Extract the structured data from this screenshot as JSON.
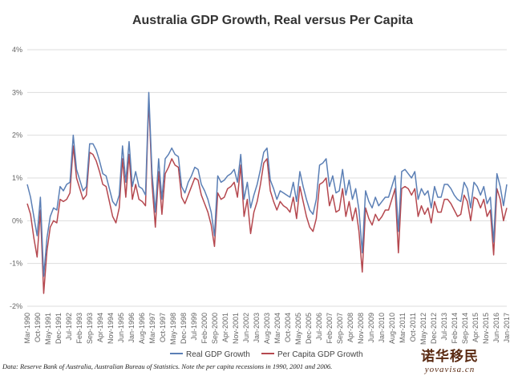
{
  "chart_data": {
    "type": "line",
    "title": "Australia GDP Growth, Real versus Per Capita",
    "ylim": [
      -2,
      4
    ],
    "yticks": [
      -2,
      -1,
      0,
      1,
      2,
      3,
      4
    ],
    "ytick_labels": [
      "-2%",
      "-1%",
      "0%",
      "1%",
      "2%",
      "3%",
      "4%"
    ],
    "x_start": "Mar-1990",
    "x_labels": [
      "Mar-1990",
      "Oct-1990",
      "May-1991",
      "Dec-1991",
      "Jul-1992",
      "Feb-1993",
      "Sep-1993",
      "Apr-1994",
      "Nov-1994",
      "Jun-1995",
      "Jan-1996",
      "Aug-1996",
      "Mar-1997",
      "Oct-1997",
      "May-1998",
      "Dec-1998",
      "Jul-1999",
      "Feb-2000",
      "Sep-2000",
      "Apr-2001",
      "Nov-2001",
      "Jun-2002",
      "Jan-2003",
      "Aug-2003",
      "Mar-2004",
      "Oct-2004",
      "May-2005",
      "Dec-2005",
      "Jul-2006",
      "Feb-2007",
      "Sep-2007",
      "Apr-2008",
      "Nov-2008",
      "Jun-2009",
      "Jan-2010",
      "Aug-2010",
      "Mar-2011",
      "Oct-2011",
      "May-2012",
      "Dec-2012",
      "Jul-2013",
      "Feb-2014",
      "Sep-2014",
      "Apr-2015",
      "Nov-2015",
      "Jun-2016",
      "Jan-2017"
    ],
    "legend_position": "bottom",
    "series": [
      {
        "name": "Real GDP Growth",
        "color": "#5b7fb5",
        "values": [
          0.85,
          0.55,
          0.1,
          -0.35,
          0.55,
          -1.3,
          -0.4,
          0.1,
          0.3,
          0.25,
          0.8,
          0.7,
          0.85,
          0.9,
          2.0,
          1.2,
          0.95,
          0.7,
          0.8,
          1.8,
          1.8,
          1.65,
          1.4,
          1.1,
          1.05,
          0.75,
          0.45,
          0.35,
          0.6,
          1.75,
          0.9,
          1.85,
          0.8,
          1.15,
          0.8,
          0.75,
          0.6,
          3.0,
          1.1,
          0.2,
          1.45,
          0.5,
          1.45,
          1.55,
          1.7,
          1.55,
          1.5,
          0.8,
          0.65,
          0.9,
          1.05,
          1.25,
          1.2,
          0.85,
          0.7,
          0.5,
          0.2,
          -0.35,
          1.05,
          0.9,
          0.95,
          1.05,
          1.1,
          1.2,
          0.9,
          1.55,
          0.5,
          0.9,
          0.3,
          0.6,
          0.85,
          1.2,
          1.6,
          1.7,
          0.95,
          0.75,
          0.5,
          0.7,
          0.65,
          0.6,
          0.55,
          0.9,
          0.45,
          1.15,
          0.8,
          0.5,
          0.25,
          0.15,
          0.5,
          1.3,
          1.35,
          1.45,
          0.8,
          1.05,
          0.65,
          0.7,
          1.2,
          0.6,
          0.95,
          0.5,
          0.75,
          0.25,
          -0.75,
          0.7,
          0.45,
          0.3,
          0.55,
          0.35,
          0.45,
          0.55,
          0.55,
          0.8,
          1.05,
          -0.25,
          1.15,
          1.2,
          1.1,
          1.0,
          1.15,
          0.5,
          0.75,
          0.6,
          0.7,
          0.3,
          0.8,
          0.55,
          0.55,
          0.85,
          0.85,
          0.75,
          0.6,
          0.5,
          0.45,
          0.9,
          0.75,
          0.3,
          0.9,
          0.8,
          0.6,
          0.8,
          0.4,
          0.55,
          -0.5,
          1.1,
          0.8,
          0.35,
          0.85
        ]
      },
      {
        "name": "Per Capita GDP Growth",
        "color": "#b5484f",
        "values": [
          0.4,
          0.15,
          -0.4,
          -0.85,
          0.25,
          -1.7,
          -0.7,
          -0.15,
          0.0,
          -0.05,
          0.5,
          0.45,
          0.5,
          0.65,
          1.75,
          1.0,
          0.75,
          0.5,
          0.6,
          1.6,
          1.55,
          1.4,
          1.15,
          0.85,
          0.8,
          0.45,
          0.1,
          -0.05,
          0.3,
          1.45,
          0.55,
          1.55,
          0.5,
          0.85,
          0.5,
          0.45,
          0.35,
          2.85,
          0.85,
          -0.15,
          1.15,
          0.15,
          1.1,
          1.25,
          1.45,
          1.3,
          1.25,
          0.55,
          0.4,
          0.6,
          0.8,
          1.0,
          0.95,
          0.6,
          0.4,
          0.2,
          -0.1,
          -0.6,
          0.65,
          0.5,
          0.55,
          0.75,
          0.8,
          0.9,
          0.55,
          1.3,
          0.1,
          0.5,
          -0.3,
          0.2,
          0.45,
          0.85,
          1.35,
          1.45,
          0.7,
          0.45,
          0.25,
          0.45,
          0.35,
          0.3,
          0.2,
          0.55,
          0.05,
          0.8,
          0.45,
          0.1,
          -0.15,
          -0.25,
          0.05,
          0.85,
          0.9,
          1.0,
          0.35,
          0.6,
          0.2,
          0.25,
          0.75,
          0.1,
          0.45,
          0.0,
          0.3,
          -0.25,
          -1.2,
          0.3,
          0.05,
          -0.1,
          0.15,
          0.0,
          0.1,
          0.25,
          0.25,
          0.5,
          0.75,
          -0.75,
          0.75,
          0.8,
          0.75,
          0.6,
          0.75,
          0.1,
          0.35,
          0.15,
          0.3,
          -0.05,
          0.45,
          0.2,
          0.2,
          0.5,
          0.5,
          0.4,
          0.25,
          0.1,
          0.15,
          0.6,
          0.45,
          0.0,
          0.55,
          0.5,
          0.3,
          0.5,
          0.1,
          0.25,
          -0.8,
          0.75,
          0.5,
          0.0,
          0.3
        ]
      }
    ]
  },
  "source_note": "Data: Reserve Bank of Australia, Australian Bureau of Statistics. Note the per capita recessions in 1990, 2001 and 2006.",
  "watermark": {
    "chinese": "诺华移民",
    "english": "yovavisa.cn"
  }
}
